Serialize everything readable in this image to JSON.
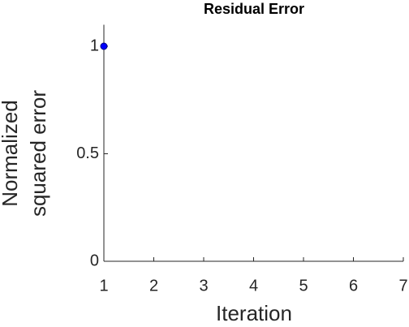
{
  "chart_data": {
    "type": "line",
    "title": "Residual Error",
    "xlabel": "Iteration",
    "ylabel": [
      "Normalized",
      "squared error"
    ],
    "x": [
      1
    ],
    "series": [
      {
        "values": [
          1
        ],
        "color": "#0000ff",
        "edgecolor": "#000080"
      }
    ],
    "xlim": [
      1,
      7
    ],
    "xticks": [
      1,
      2,
      3,
      4,
      5,
      6,
      7
    ],
    "ylim": [
      0,
      1.1
    ],
    "yticks": [
      0,
      0.5,
      1
    ],
    "grid": false
  }
}
